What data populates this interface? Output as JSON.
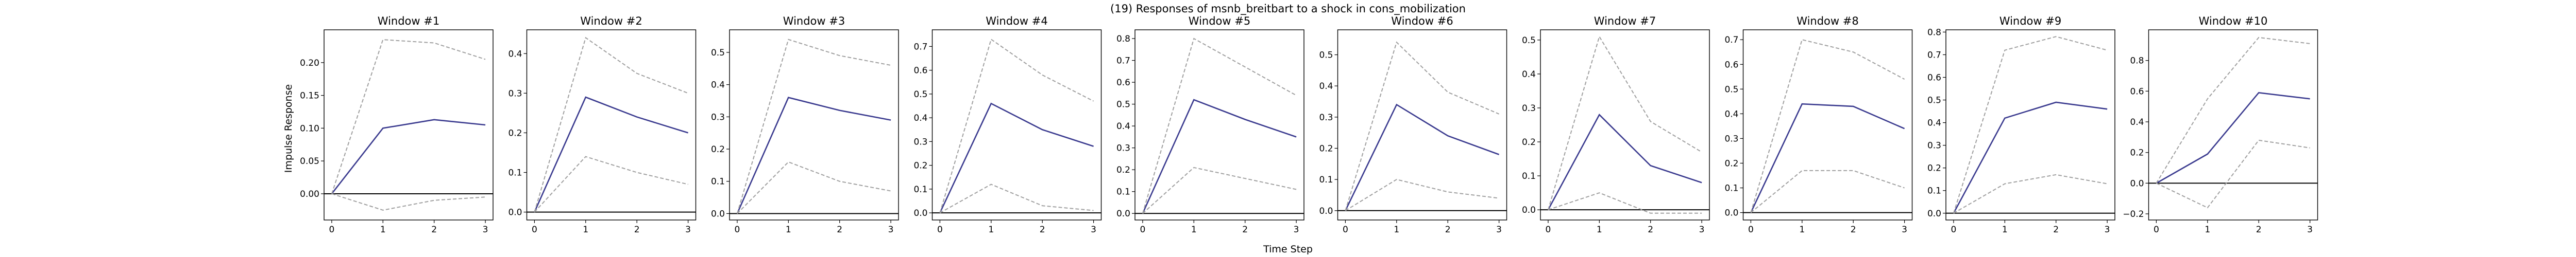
{
  "figure": {
    "suptitle": "(19) Responses of msnb_breitbart to a shock in cons_mobilization",
    "xlabel": "Time Step",
    "ylabel": "Impulse Response"
  },
  "colors": {
    "irf_line": "#3b3b8f",
    "band_line": "#a0a0a0",
    "zero_line": "#000000",
    "frame": "#000000"
  },
  "chart_data": [
    {
      "type": "line",
      "title": "Window #1",
      "x": [
        0,
        1,
        2,
        3
      ],
      "xticks": [
        0,
        1,
        2,
        3
      ],
      "ylim": [
        -0.04,
        0.25
      ],
      "yticks": [
        0.0,
        0.05,
        0.1,
        0.15,
        0.2
      ],
      "ytick_labels": [
        "0.00",
        "0.05",
        "0.10",
        "0.15",
        "0.20"
      ],
      "series": [
        {
          "role": "irf",
          "values": [
            0.0,
            0.1,
            0.113,
            0.105
          ]
        },
        {
          "role": "upper",
          "values": [
            0.0,
            0.235,
            0.23,
            0.205
          ]
        },
        {
          "role": "lower",
          "values": [
            0.0,
            -0.025,
            -0.01,
            -0.005
          ]
        }
      ]
    },
    {
      "type": "line",
      "title": "Window #2",
      "x": [
        0,
        1,
        2,
        3
      ],
      "xticks": [
        0,
        1,
        2,
        3
      ],
      "ylim": [
        -0.02,
        0.46
      ],
      "yticks": [
        0.0,
        0.1,
        0.2,
        0.3,
        0.4
      ],
      "ytick_labels": [
        "0.0",
        "0.1",
        "0.2",
        "0.3",
        "0.4"
      ],
      "series": [
        {
          "role": "irf",
          "values": [
            0.0,
            0.29,
            0.24,
            0.2
          ]
        },
        {
          "role": "upper",
          "values": [
            0.0,
            0.44,
            0.35,
            0.3
          ]
        },
        {
          "role": "lower",
          "values": [
            0.0,
            0.14,
            0.1,
            0.07
          ]
        }
      ]
    },
    {
      "type": "line",
      "title": "Window #3",
      "x": [
        0,
        1,
        2,
        3
      ],
      "xticks": [
        0,
        1,
        2,
        3
      ],
      "ylim": [
        -0.02,
        0.57
      ],
      "yticks": [
        0.0,
        0.1,
        0.2,
        0.3,
        0.4,
        0.5
      ],
      "ytick_labels": [
        "0.0",
        "0.1",
        "0.2",
        "0.3",
        "0.4",
        "0.5"
      ],
      "series": [
        {
          "role": "irf",
          "values": [
            0.0,
            0.36,
            0.32,
            0.29
          ]
        },
        {
          "role": "upper",
          "values": [
            0.0,
            0.54,
            0.49,
            0.46
          ]
        },
        {
          "role": "lower",
          "values": [
            0.0,
            0.16,
            0.1,
            0.07
          ]
        }
      ]
    },
    {
      "type": "line",
      "title": "Window #4",
      "x": [
        0,
        1,
        2,
        3
      ],
      "xticks": [
        0,
        1,
        2,
        3
      ],
      "ylim": [
        -0.03,
        0.77
      ],
      "yticks": [
        0.0,
        0.1,
        0.2,
        0.3,
        0.4,
        0.5,
        0.6,
        0.7
      ],
      "ytick_labels": [
        "0.0",
        "0.1",
        "0.2",
        "0.3",
        "0.4",
        "0.5",
        "0.6",
        "0.7"
      ],
      "series": [
        {
          "role": "irf",
          "values": [
            0.0,
            0.46,
            0.35,
            0.28
          ]
        },
        {
          "role": "upper",
          "values": [
            0.0,
            0.73,
            0.58,
            0.47
          ]
        },
        {
          "role": "lower",
          "values": [
            0.0,
            0.12,
            0.03,
            0.01
          ]
        }
      ]
    },
    {
      "type": "line",
      "title": "Window #5",
      "x": [
        0,
        1,
        2,
        3
      ],
      "xticks": [
        0,
        1,
        2,
        3
      ],
      "ylim": [
        -0.03,
        0.84
      ],
      "yticks": [
        0.0,
        0.1,
        0.2,
        0.3,
        0.4,
        0.5,
        0.6,
        0.7,
        0.8
      ],
      "ytick_labels": [
        "0.0",
        "0.1",
        "0.2",
        "0.3",
        "0.4",
        "0.5",
        "0.6",
        "0.7",
        "0.8"
      ],
      "series": [
        {
          "role": "irf",
          "values": [
            0.0,
            0.52,
            0.43,
            0.35
          ]
        },
        {
          "role": "upper",
          "values": [
            0.0,
            0.8,
            0.67,
            0.54
          ]
        },
        {
          "role": "lower",
          "values": [
            0.0,
            0.21,
            0.16,
            0.11
          ]
        }
      ]
    },
    {
      "type": "line",
      "title": "Window #6",
      "x": [
        0,
        1,
        2,
        3
      ],
      "xticks": [
        0,
        1,
        2,
        3
      ],
      "ylim": [
        -0.03,
        0.58
      ],
      "yticks": [
        0.0,
        0.1,
        0.2,
        0.3,
        0.4,
        0.5
      ],
      "ytick_labels": [
        "0.0",
        "0.1",
        "0.2",
        "0.3",
        "0.4",
        "0.5"
      ],
      "series": [
        {
          "role": "irf",
          "values": [
            0.0,
            0.34,
            0.24,
            0.18
          ]
        },
        {
          "role": "upper",
          "values": [
            0.0,
            0.54,
            0.38,
            0.31
          ]
        },
        {
          "role": "lower",
          "values": [
            0.0,
            0.1,
            0.06,
            0.04
          ]
        }
      ]
    },
    {
      "type": "line",
      "title": "Window #7",
      "x": [
        0,
        1,
        2,
        3
      ],
      "xticks": [
        0,
        1,
        2,
        3
      ],
      "ylim": [
        -0.03,
        0.53
      ],
      "yticks": [
        0.0,
        0.1,
        0.2,
        0.3,
        0.4,
        0.5
      ],
      "ytick_labels": [
        "0.0",
        "0.1",
        "0.2",
        "0.3",
        "0.4",
        "0.5"
      ],
      "series": [
        {
          "role": "irf",
          "values": [
            0.0,
            0.28,
            0.13,
            0.08
          ]
        },
        {
          "role": "upper",
          "values": [
            0.0,
            0.51,
            0.26,
            0.17
          ]
        },
        {
          "role": "lower",
          "values": [
            0.0,
            0.05,
            -0.01,
            -0.01
          ]
        }
      ]
    },
    {
      "type": "line",
      "title": "Window #8",
      "x": [
        0,
        1,
        2,
        3
      ],
      "xticks": [
        0,
        1,
        2,
        3
      ],
      "ylim": [
        -0.03,
        0.74
      ],
      "yticks": [
        0.0,
        0.1,
        0.2,
        0.3,
        0.4,
        0.5,
        0.6,
        0.7
      ],
      "ytick_labels": [
        "0.0",
        "0.1",
        "0.2",
        "0.3",
        "0.4",
        "0.5",
        "0.6",
        "0.7"
      ],
      "series": [
        {
          "role": "irf",
          "values": [
            0.0,
            0.44,
            0.43,
            0.34
          ]
        },
        {
          "role": "upper",
          "values": [
            0.0,
            0.7,
            0.65,
            0.54
          ]
        },
        {
          "role": "lower",
          "values": [
            0.0,
            0.17,
            0.17,
            0.1
          ]
        }
      ]
    },
    {
      "type": "line",
      "title": "Window #9",
      "x": [
        0,
        1,
        2,
        3
      ],
      "xticks": [
        0,
        1,
        2,
        3
      ],
      "ylim": [
        -0.03,
        0.81
      ],
      "yticks": [
        0.0,
        0.1,
        0.2,
        0.3,
        0.4,
        0.5,
        0.6,
        0.7,
        0.8
      ],
      "ytick_labels": [
        "0.0",
        "0.1",
        "0.2",
        "0.3",
        "0.4",
        "0.5",
        "0.6",
        "0.7",
        "0.8"
      ],
      "series": [
        {
          "role": "irf",
          "values": [
            0.0,
            0.42,
            0.49,
            0.46
          ]
        },
        {
          "role": "upper",
          "values": [
            0.0,
            0.72,
            0.78,
            0.72
          ]
        },
        {
          "role": "lower",
          "values": [
            0.0,
            0.13,
            0.17,
            0.13
          ]
        }
      ]
    },
    {
      "type": "line",
      "title": "Window #10",
      "x": [
        0,
        1,
        2,
        3
      ],
      "xticks": [
        0,
        1,
        2,
        3
      ],
      "ylim": [
        -0.24,
        1.0
      ],
      "yticks": [
        -0.2,
        0.0,
        0.2,
        0.4,
        0.6,
        0.8
      ],
      "ytick_labels": [
        "−0.2",
        "0.0",
        "0.2",
        "0.4",
        "0.6",
        "0.8"
      ],
      "series": [
        {
          "role": "irf",
          "values": [
            0.0,
            0.19,
            0.59,
            0.55
          ]
        },
        {
          "role": "upper",
          "values": [
            0.0,
            0.55,
            0.95,
            0.91
          ]
        },
        {
          "role": "lower",
          "values": [
            0.0,
            -0.16,
            0.28,
            0.23
          ]
        }
      ]
    }
  ]
}
